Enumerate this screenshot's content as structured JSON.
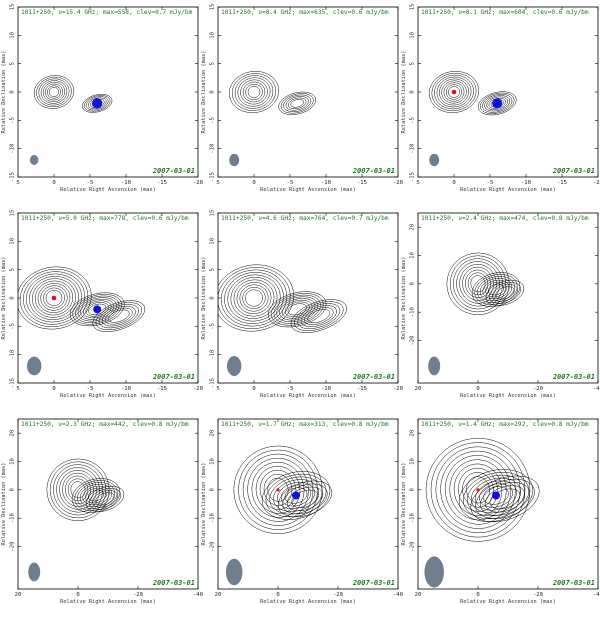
{
  "chart_data": [
    {
      "type": "contour",
      "source": "1011+250",
      "freq": "15.4",
      "max": "558",
      "elev": "0.7",
      "title": "1011+250, ν=15.4 GHz; max=558, clev=0.7 mJy/bm",
      "date": "2007-03-01",
      "xlabel": "Relative Right Ascension (mas)",
      "ylabel": "Relative Declination (mas)",
      "xlim": [
        5,
        -20
      ],
      "ylim": [
        -15,
        15
      ],
      "xticks": [
        "5",
        "0",
        "-5",
        "-10",
        "-15",
        "-20"
      ],
      "yticks": [
        "-15",
        "-10",
        "-5",
        "0",
        "5",
        "10",
        "15"
      ],
      "core": [
        0,
        0
      ],
      "jet_component": [
        -6,
        -2
      ],
      "markers": {
        "core": false,
        "component": true
      },
      "beam_mas": [
        1.2,
        1.6
      ],
      "contour_levels": 8
    },
    {
      "type": "contour",
      "source": "1011+250",
      "freq": "8.4",
      "max": "635",
      "elev": "0.6",
      "title": "1011+250, ν=8.4 GHz; max=635, clev=0.6 mJy/bm",
      "date": "2007-03-01",
      "xlabel": "Relative Right Ascension (mas)",
      "ylabel": "Relative Declination (mas)",
      "xlim": [
        5,
        -20
      ],
      "ylim": [
        -15,
        15
      ],
      "xticks": [
        "5",
        "0",
        "-5",
        "-10",
        "-15",
        "-20"
      ],
      "yticks": [
        "-15",
        "-10",
        "-5",
        "0",
        "5",
        "10",
        "15"
      ],
      "core": [
        0,
        0
      ],
      "jet_component": [
        -6,
        -2
      ],
      "markers": {
        "core": false,
        "component": false
      },
      "beam_mas": [
        1.4,
        2.0
      ],
      "contour_levels": 8
    },
    {
      "type": "contour",
      "source": "1011+250",
      "freq": "8.1",
      "max": "604",
      "elev": "0.6",
      "title": "1011+250, ν=8.1 GHz; max=604, clev=0.6 mJy/bm",
      "date": "2007-03-01",
      "xlabel": "Relative Right Ascension (mas)",
      "ylabel": "Relative Declination (mas)",
      "xlim": [
        5,
        -20
      ],
      "ylim": [
        -15,
        15
      ],
      "xticks": [
        "5",
        "0",
        "-5",
        "-10",
        "-15",
        "-20"
      ],
      "yticks": [
        "-15",
        "-10",
        "-5",
        "0",
        "5",
        "10",
        "15"
      ],
      "core": [
        0,
        0
      ],
      "jet_component": [
        -6,
        -2
      ],
      "markers": {
        "core": true,
        "component": true
      },
      "beam_mas": [
        1.4,
        2.0
      ],
      "contour_levels": 9
    },
    {
      "type": "contour",
      "source": "1011+250",
      "freq": "5.0",
      "max": "778",
      "elev": "0.6",
      "title": "1011+250, ν=5.0 GHz; max=778, clev=0.6 mJy/bm",
      "date": "2007-03-01",
      "xlabel": "Relative Right Ascension (mas)",
      "ylabel": "Relative Declination (mas)",
      "xlim": [
        5,
        -20
      ],
      "ylim": [
        -15,
        15
      ],
      "xticks": [
        "5",
        "0",
        "-5",
        "-10",
        "-15",
        "-20"
      ],
      "yticks": [
        "-15",
        "-10",
        "-5",
        "0",
        "5",
        "10",
        "15"
      ],
      "core": [
        0,
        0
      ],
      "jet_component": [
        -6,
        -2
      ],
      "markers": {
        "core": true,
        "component": true
      },
      "beam_mas": [
        2.0,
        3.0
      ],
      "contour_levels": 11
    },
    {
      "type": "contour",
      "source": "1011+250",
      "freq": "4.6",
      "max": "764",
      "elev": "0.7",
      "title": "1011+250, ν=4.6 GHz; max=764, clev=0.7 mJy/bm",
      "date": "2007-03-01",
      "xlabel": "Relative Right Ascension (mas)",
      "ylabel": "Relative Declination (mas)",
      "xlim": [
        5,
        -20
      ],
      "ylim": [
        -15,
        15
      ],
      "xticks": [
        "5",
        "0",
        "-5",
        "-10",
        "-15",
        "-20"
      ],
      "yticks": [
        "-15",
        "-10",
        "-5",
        "0",
        "5",
        "10",
        "15"
      ],
      "core": [
        0,
        0
      ],
      "jet_component": [
        -6,
        -2
      ],
      "markers": {
        "core": false,
        "component": false
      },
      "beam_mas": [
        2.0,
        3.2
      ],
      "contour_levels": 11
    },
    {
      "type": "contour",
      "source": "1011+250",
      "freq": "2.4",
      "max": "474",
      "elev": "0.8",
      "title": "1011+250, ν=2.4 GHz; max=474, clev=0.8 mJy/bm",
      "date": "2007-03-01",
      "xlabel": "Relative Right Ascension (mas)",
      "ylabel": "Relative Declination (mas)",
      "xlim": [
        20,
        -40
      ],
      "ylim": [
        -35,
        25
      ],
      "xticks": [
        "20",
        "0",
        "-20",
        "-40"
      ],
      "yticks": [
        "-20",
        "-10",
        "0",
        "10",
        "20"
      ],
      "core": [
        0,
        0
      ],
      "jet_component": [
        -6,
        -2
      ],
      "markers": {
        "core": false,
        "component": false
      },
      "beam_mas": [
        4,
        6
      ],
      "contour_levels": 9
    },
    {
      "type": "contour",
      "source": "1011+250",
      "freq": "2.3",
      "max": "442",
      "elev": "0.8",
      "title": "1011+250, ν=2.3 GHz; max=442, clev=0.8 mJy/bm",
      "date": "2007-03-01",
      "xlabel": "Relative Right Ascension (mas)",
      "ylabel": "Relative Declination (mas)",
      "xlim": [
        20,
        -40
      ],
      "ylim": [
        -35,
        25
      ],
      "xticks": [
        "20",
        "0",
        "-20",
        "-40"
      ],
      "yticks": [
        "-20",
        "-10",
        "0",
        "10",
        "20"
      ],
      "core": [
        0,
        0
      ],
      "jet_component": [
        -6,
        -2
      ],
      "markers": {
        "core": false,
        "component": false
      },
      "beam_mas": [
        4,
        6
      ],
      "contour_levels": 9
    },
    {
      "type": "contour",
      "source": "1011+250",
      "freq": "1.7",
      "max": "313",
      "elev": "0.8",
      "title": "1011+250, ν=1.7 GHz; max=313, clev=0.8 mJy/bm",
      "date": "2007-03-01",
      "xlabel": "Relative Right Ascension (mas)",
      "ylabel": "Relative Declination (mas)",
      "xlim": [
        20,
        -40
      ],
      "ylim": [
        -35,
        25
      ],
      "xticks": [
        "20",
        "0",
        "-20",
        "-40"
      ],
      "yticks": [
        "-20",
        "-10",
        "0",
        "10",
        "20"
      ],
      "core": [
        0,
        0
      ],
      "jet_component": [
        -6,
        -2
      ],
      "markers": {
        "core": true,
        "component": true
      },
      "beam_mas": [
        5.5,
        8.5
      ],
      "contour_levels": 9
    },
    {
      "type": "contour",
      "source": "1011+250",
      "freq": "1.4",
      "max": "292",
      "elev": "0.8",
      "title": "1011+250, ν=1.4 GHz; max=292, clev=0.8 mJy/bm",
      "date": "2007-03-01",
      "xlabel": "Relative Right Ascension (mas)",
      "ylabel": "Relative Declination (mas)",
      "xlim": [
        20,
        -40
      ],
      "ylim": [
        -35,
        25
      ],
      "xticks": [
        "20",
        "0",
        "-20",
        "-40"
      ],
      "yticks": [
        "-20",
        "-10",
        "0",
        "10",
        "20"
      ],
      "core": [
        0,
        0
      ],
      "jet_component": [
        -6,
        -2
      ],
      "markers": {
        "core": true,
        "component": true
      },
      "beam_mas": [
        6.5,
        10
      ],
      "contour_levels": 10
    }
  ],
  "colors": {
    "contour": "#000000",
    "title": "#1a7a1a",
    "beam": "#6f7f8f",
    "core_marker": "#e01010",
    "component_marker": "#1010e0",
    "frame": "#000000"
  }
}
